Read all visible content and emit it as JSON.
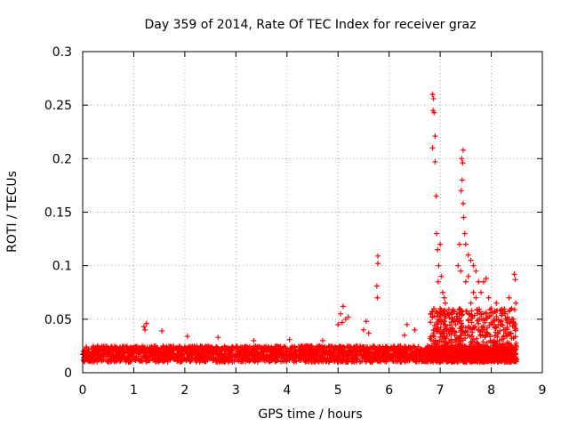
{
  "chart_data": {
    "type": "scatter",
    "title": "Day 359 of 2014, Rate Of TEC Index for receiver graz",
    "xlabel": "GPS time / hours",
    "ylabel": "ROTI / TECUs",
    "xlim": [
      0,
      9
    ],
    "ylim": [
      0,
      0.3
    ],
    "x_ticks": [
      0,
      1,
      2,
      3,
      4,
      5,
      6,
      7,
      8,
      9
    ],
    "x_tick_labels": [
      "0",
      "1",
      "2",
      "3",
      "4",
      "5",
      "6",
      "7",
      "8",
      "9"
    ],
    "y_ticks": [
      0,
      0.05,
      0.1,
      0.15,
      0.2,
      0.25,
      0.3
    ],
    "y_tick_labels": [
      "0",
      "0.05",
      "0.1",
      "0.15",
      "0.2",
      "0.25",
      "0.3"
    ],
    "grid": true,
    "marker": "+",
    "marker_color": "#ff0000",
    "baseline_band": {
      "x_range": [
        0,
        8.5
      ],
      "y_range": [
        0.01,
        0.025
      ]
    },
    "elevated_band": {
      "x_range": [
        6.8,
        8.5
      ],
      "y_range": [
        0.01,
        0.06
      ]
    },
    "series": [
      {
        "name": "ROTI",
        "points": [
          [
            1.2,
            0.043
          ],
          [
            1.25,
            0.046
          ],
          [
            1.22,
            0.04
          ],
          [
            1.55,
            0.039
          ],
          [
            2.05,
            0.034
          ],
          [
            2.65,
            0.033
          ],
          [
            3.35,
            0.03
          ],
          [
            4.05,
            0.031
          ],
          [
            4.7,
            0.03
          ],
          [
            5.05,
            0.055
          ],
          [
            5.1,
            0.062
          ],
          [
            5.15,
            0.05
          ],
          [
            5.0,
            0.045
          ],
          [
            5.2,
            0.052
          ],
          [
            5.08,
            0.047
          ],
          [
            5.5,
            0.04
          ],
          [
            5.55,
            0.048
          ],
          [
            5.6,
            0.037
          ],
          [
            5.78,
            0.109
          ],
          [
            5.78,
            0.102
          ],
          [
            5.76,
            0.081
          ],
          [
            5.77,
            0.07
          ],
          [
            6.3,
            0.035
          ],
          [
            6.35,
            0.045
          ],
          [
            6.5,
            0.04
          ],
          [
            6.85,
            0.26
          ],
          [
            6.87,
            0.256
          ],
          [
            6.86,
            0.245
          ],
          [
            6.88,
            0.243
          ],
          [
            6.9,
            0.221
          ],
          [
            6.85,
            0.21
          ],
          [
            6.9,
            0.197
          ],
          [
            6.92,
            0.165
          ],
          [
            6.93,
            0.13
          ],
          [
            6.95,
            0.115
          ],
          [
            6.97,
            0.1
          ],
          [
            7.0,
            0.12
          ],
          [
            7.02,
            0.09
          ],
          [
            6.96,
            0.085
          ],
          [
            7.05,
            0.075
          ],
          [
            7.08,
            0.07
          ],
          [
            7.1,
            0.065
          ],
          [
            7.0,
            0.06
          ],
          [
            7.15,
            0.055
          ],
          [
            7.45,
            0.208
          ],
          [
            7.42,
            0.2
          ],
          [
            7.44,
            0.196
          ],
          [
            7.43,
            0.18
          ],
          [
            7.41,
            0.17
          ],
          [
            7.45,
            0.158
          ],
          [
            7.46,
            0.145
          ],
          [
            7.38,
            0.12
          ],
          [
            7.48,
            0.13
          ],
          [
            7.5,
            0.12
          ],
          [
            7.35,
            0.1
          ],
          [
            7.4,
            0.095
          ],
          [
            7.5,
            0.085
          ],
          [
            7.55,
            0.11
          ],
          [
            7.6,
            0.105
          ],
          [
            7.65,
            0.1
          ],
          [
            7.55,
            0.09
          ],
          [
            7.7,
            0.095
          ],
          [
            7.75,
            0.085
          ],
          [
            7.65,
            0.075
          ],
          [
            7.7,
            0.07
          ],
          [
            7.8,
            0.075
          ],
          [
            7.6,
            0.065
          ],
          [
            7.85,
            0.085
          ],
          [
            7.9,
            0.088
          ],
          [
            7.95,
            0.07
          ],
          [
            8.0,
            0.06
          ],
          [
            7.9,
            0.055
          ],
          [
            8.1,
            0.065
          ],
          [
            8.2,
            0.055
          ],
          [
            8.3,
            0.05
          ],
          [
            8.35,
            0.07
          ],
          [
            8.4,
            0.06
          ],
          [
            8.45,
            0.092
          ],
          [
            8.47,
            0.087
          ],
          [
            8.48,
            0.065
          ],
          [
            8.43,
            0.05
          ],
          [
            8.2,
            0.045
          ],
          [
            8.05,
            0.05
          ],
          [
            7.25,
            0.05
          ],
          [
            7.3,
            0.045
          ],
          [
            7.2,
            0.04
          ],
          [
            7.1,
            0.045
          ],
          [
            8.25,
            0.04
          ]
        ]
      }
    ]
  }
}
